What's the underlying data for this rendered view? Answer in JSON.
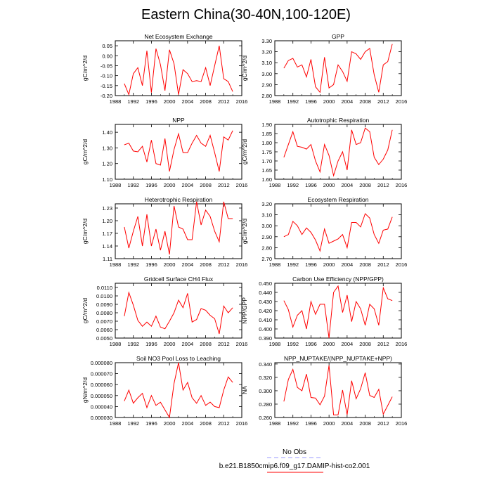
{
  "title": "Eastern China(30-40N,100-120E)",
  "legend": {
    "entries": [
      {
        "label": "No Obs",
        "color": "#9999ff",
        "dash": true
      },
      {
        "label": "b.e21.B1850cmip6.f09_g17.DAMIP-hist-co2.001",
        "color": "#ff0000",
        "dash": false
      }
    ]
  },
  "line_color": "#ff0000",
  "chart_data": [
    {
      "type": "line",
      "title": "Net Ecosystem Exchange",
      "ylabel": "gC/m^2/d",
      "xlim": [
        1988,
        2016
      ],
      "ylim": [
        -0.2,
        0.075
      ],
      "xticks": [
        1988,
        1992,
        1996,
        2000,
        2004,
        2008,
        2012,
        2016
      ],
      "yticks": [
        -0.2,
        -0.15,
        -0.1,
        -0.05,
        0.0,
        0.05
      ],
      "ytick_labels": [
        "-0.20",
        "-0.15",
        "-0.10",
        "-0.05",
        "0.00",
        "0.05"
      ],
      "x": [
        1990,
        1991,
        1992,
        1993,
        1994,
        1995,
        1996,
        1997,
        1998,
        1999,
        2000,
        2001,
        2002,
        2003,
        2004,
        2005,
        2006,
        2007,
        2008,
        2009,
        2010,
        2011,
        2012,
        2013,
        2014
      ],
      "y": [
        -0.14,
        -0.195,
        -0.09,
        -0.06,
        -0.15,
        0.025,
        -0.185,
        0.035,
        -0.045,
        -0.175,
        0.03,
        -0.04,
        -0.195,
        -0.07,
        -0.09,
        -0.13,
        -0.125,
        -0.13,
        -0.06,
        -0.15,
        -0.05,
        0.05,
        -0.115,
        -0.13,
        -0.18
      ]
    },
    {
      "type": "line",
      "title": "GPP",
      "ylabel": "gC/m^2/d",
      "xlim": [
        1988,
        2016
      ],
      "ylim": [
        2.8,
        3.3
      ],
      "xticks": [
        1988,
        1992,
        1996,
        2000,
        2004,
        2008,
        2012,
        2016
      ],
      "yticks": [
        2.8,
        2.9,
        3.0,
        3.1,
        3.2,
        3.3
      ],
      "ytick_labels": [
        "2.80",
        "2.90",
        "3.00",
        "3.10",
        "3.20",
        "3.30"
      ],
      "x": [
        1990,
        1991,
        1992,
        1993,
        1994,
        1995,
        1996,
        1997,
        1998,
        1999,
        2000,
        2001,
        2002,
        2003,
        2004,
        2005,
        2006,
        2007,
        2008,
        2009,
        2010,
        2011,
        2012,
        2013,
        2014
      ],
      "y": [
        3.05,
        3.12,
        3.14,
        3.06,
        3.08,
        2.97,
        3.13,
        2.88,
        2.83,
        3.15,
        2.87,
        2.9,
        3.08,
        3.02,
        2.93,
        3.2,
        3.18,
        3.13,
        3.2,
        3.23,
        2.99,
        2.83,
        3.08,
        3.11,
        3.27
      ]
    },
    {
      "type": "line",
      "title": "NPP",
      "ylabel": "gC/m^2/d",
      "xlim": [
        1988,
        2016
      ],
      "ylim": [
        1.1,
        1.45
      ],
      "xticks": [
        1988,
        1992,
        1996,
        2000,
        2004,
        2008,
        2012,
        2016
      ],
      "yticks": [
        1.1,
        1.2,
        1.3,
        1.4
      ],
      "ytick_labels": [
        "1.10",
        "1.20",
        "1.30",
        "1.40"
      ],
      "x": [
        1990,
        1991,
        1992,
        1993,
        1994,
        1995,
        1996,
        1997,
        1998,
        1999,
        2000,
        2001,
        2002,
        2003,
        2004,
        2005,
        2006,
        2007,
        2008,
        2009,
        2010,
        2011,
        2012,
        2013,
        2014
      ],
      "y": [
        1.32,
        1.33,
        1.28,
        1.275,
        1.31,
        1.21,
        1.35,
        1.2,
        1.19,
        1.36,
        1.15,
        1.29,
        1.39,
        1.27,
        1.27,
        1.33,
        1.38,
        1.33,
        1.31,
        1.38,
        1.27,
        1.15,
        1.37,
        1.35,
        1.41
      ]
    },
    {
      "type": "line",
      "title": "Autotrophic Respiration",
      "ylabel": "gC/m^2/d",
      "xlim": [
        1988,
        2016
      ],
      "ylim": [
        1.6,
        1.9
      ],
      "xticks": [
        1988,
        1992,
        1996,
        2000,
        2004,
        2008,
        2012,
        2016
      ],
      "yticks": [
        1.6,
        1.65,
        1.7,
        1.75,
        1.8,
        1.85,
        1.9
      ],
      "ytick_labels": [
        "1.60",
        "1.65",
        "1.70",
        "1.75",
        "1.80",
        "1.85",
        "1.90"
      ],
      "x": [
        1990,
        1991,
        1992,
        1993,
        1994,
        1995,
        1996,
        1997,
        1998,
        1999,
        2000,
        2001,
        2002,
        2003,
        2004,
        2005,
        2006,
        2007,
        2008,
        2009,
        2010,
        2011,
        2012,
        2013,
        2014
      ],
      "y": [
        1.72,
        1.79,
        1.86,
        1.78,
        1.775,
        1.765,
        1.79,
        1.7,
        1.64,
        1.79,
        1.73,
        1.62,
        1.7,
        1.75,
        1.65,
        1.87,
        1.79,
        1.8,
        1.88,
        1.86,
        1.72,
        1.68,
        1.71,
        1.76,
        1.87
      ]
    },
    {
      "type": "line",
      "title": "Heterotrophic Respiration",
      "ylabel": "gC/m^2/d",
      "xlim": [
        1988,
        2016
      ],
      "ylim": [
        1.11,
        1.24
      ],
      "xticks": [
        1988,
        1992,
        1996,
        2000,
        2004,
        2008,
        2012,
        2016
      ],
      "yticks": [
        1.11,
        1.14,
        1.17,
        1.2,
        1.23
      ],
      "ytick_labels": [
        "1.11",
        "1.14",
        "1.17",
        "1.20",
        "1.23"
      ],
      "x": [
        1990,
        1991,
        1992,
        1993,
        1994,
        1995,
        1996,
        1997,
        1998,
        1999,
        2000,
        2001,
        2002,
        2003,
        2004,
        2005,
        2006,
        2007,
        2008,
        2009,
        2010,
        2011,
        2012,
        2013,
        2014
      ],
      "y": [
        1.185,
        1.135,
        1.175,
        1.21,
        1.14,
        1.215,
        1.14,
        1.18,
        1.13,
        1.175,
        1.12,
        1.235,
        1.185,
        1.18,
        1.155,
        1.155,
        1.245,
        1.19,
        1.225,
        1.21,
        1.175,
        1.15,
        1.245,
        1.205,
        1.205
      ]
    },
    {
      "type": "line",
      "title": "Ecosystem Respiration",
      "ylabel": "gC/m^2/d",
      "xlim": [
        1988,
        2016
      ],
      "ylim": [
        2.7,
        3.2
      ],
      "xticks": [
        1988,
        1992,
        1996,
        2000,
        2004,
        2008,
        2012,
        2016
      ],
      "yticks": [
        2.7,
        2.8,
        2.9,
        3.0,
        3.1,
        3.2
      ],
      "ytick_labels": [
        "2.70",
        "2.80",
        "2.90",
        "3.00",
        "3.10",
        "3.20"
      ],
      "x": [
        1990,
        1991,
        1992,
        1993,
        1994,
        1995,
        1996,
        1997,
        1998,
        1999,
        2000,
        2001,
        2002,
        2003,
        2004,
        2005,
        2006,
        2007,
        2008,
        2009,
        2010,
        2011,
        2012,
        2013,
        2014
      ],
      "y": [
        2.9,
        2.92,
        3.04,
        3.0,
        2.92,
        2.98,
        2.94,
        2.87,
        2.77,
        2.97,
        2.84,
        2.86,
        2.88,
        2.92,
        2.8,
        3.03,
        3.03,
        2.99,
        3.11,
        3.07,
        2.92,
        2.84,
        2.96,
        2.97,
        3.08
      ]
    },
    {
      "type": "line",
      "title": "Gridcell Surface CH4 Flux",
      "ylabel": "gC/m^2/d",
      "xlim": [
        1988,
        2016
      ],
      "ylim": [
        0.005,
        0.0115
      ],
      "xticks": [
        1988,
        1992,
        1996,
        2000,
        2004,
        2008,
        2012,
        2016
      ],
      "yticks": [
        0.005,
        0.006,
        0.007,
        0.008,
        0.009,
        0.01,
        0.011
      ],
      "ytick_labels": [
        "0.0050",
        "0.0060",
        "0.0070",
        "0.0080",
        "0.0090",
        "0.0100",
        "0.0110"
      ],
      "x": [
        1990,
        1991,
        1992,
        1993,
        1994,
        1995,
        1996,
        1997,
        1998,
        1999,
        2000,
        2001,
        2002,
        2003,
        2004,
        2005,
        2006,
        2007,
        2008,
        2009,
        2010,
        2011,
        2012,
        2013,
        2014
      ],
      "y": [
        0.0076,
        0.0104,
        0.0089,
        0.0071,
        0.0064,
        0.0069,
        0.0064,
        0.0076,
        0.0063,
        0.0061,
        0.007,
        0.008,
        0.0095,
        0.0086,
        0.0103,
        0.0069,
        0.0072,
        0.0085,
        0.0083,
        0.0077,
        0.0073,
        0.0055,
        0.0088,
        0.008,
        0.0086
      ]
    },
    {
      "type": "line",
      "title": "Carbon Use Efficiency (NPP/GPP)",
      "ylabel": "NPP/GPP",
      "xlim": [
        1988,
        2016
      ],
      "ylim": [
        0.39,
        0.45
      ],
      "xticks": [
        1988,
        1992,
        1996,
        2000,
        2004,
        2008,
        2012,
        2016
      ],
      "yticks": [
        0.39,
        0.4,
        0.41,
        0.42,
        0.43,
        0.44,
        0.45
      ],
      "ytick_labels": [
        "0.390",
        "0.400",
        "0.410",
        "0.420",
        "0.430",
        "0.440",
        "0.450"
      ],
      "x": [
        1990,
        1991,
        1992,
        1993,
        1994,
        1995,
        1996,
        1997,
        1998,
        1999,
        2000,
        2001,
        2002,
        2003,
        2004,
        2005,
        2006,
        2007,
        2008,
        2009,
        2010,
        2011,
        2012,
        2013,
        2014
      ],
      "y": [
        0.431,
        0.421,
        0.402,
        0.415,
        0.42,
        0.4,
        0.43,
        0.416,
        0.427,
        0.427,
        0.39,
        0.44,
        0.447,
        0.418,
        0.437,
        0.408,
        0.43,
        0.422,
        0.404,
        0.427,
        0.422,
        0.404,
        0.445,
        0.433,
        0.431
      ]
    },
    {
      "type": "line",
      "title": "Soil NO3 Pool Loss to Leaching",
      "ylabel": "gN/m^2/d",
      "xlim": [
        1988,
        2016
      ],
      "ylim": [
        3e-05,
        8e-05
      ],
      "xticks": [
        1988,
        1992,
        1996,
        2000,
        2004,
        2008,
        2012,
        2016
      ],
      "yticks": [
        3e-05,
        4e-05,
        5e-05,
        6e-05,
        7e-05,
        8e-05
      ],
      "ytick_labels": [
        "0.000030",
        "0.000040",
        "0.000050",
        "0.000060",
        "0.000070",
        "0.000080"
      ],
      "x": [
        1990,
        1991,
        1992,
        1993,
        1994,
        1995,
        1996,
        1997,
        1998,
        1999,
        2000,
        2001,
        2002,
        2003,
        2004,
        2005,
        2006,
        2007,
        2008,
        2009,
        2010,
        2011,
        2012,
        2013,
        2014
      ],
      "y": [
        4.5e-05,
        5.5e-05,
        4.3e-05,
        4.8e-05,
        5.2e-05,
        3.9e-05,
        5e-05,
        4.1e-05,
        4.4e-05,
        3.7e-05,
        3e-05,
        6.1e-05,
        8e-05,
        5.5e-05,
        6.2e-05,
        4.8e-05,
        4.3e-05,
        5e-05,
        4.1e-05,
        4.4e-05,
        4e-05,
        3.9e-05,
        5.5e-05,
        6.7e-05,
        6.2e-05
      ]
    },
    {
      "type": "line",
      "title": "NPP_NUPTAKE/(NPP_NUPTAKE+NPP)",
      "ylabel": "NA",
      "xlim": [
        1988,
        2016
      ],
      "ylim": [
        0.26,
        0.342
      ],
      "xticks": [
        1988,
        1992,
        1996,
        2000,
        2004,
        2008,
        2012,
        2016
      ],
      "yticks": [
        0.26,
        0.28,
        0.3,
        0.32,
        0.34
      ],
      "ytick_labels": [
        "0.260",
        "0.280",
        "0.300",
        "0.320",
        "0.340"
      ],
      "x": [
        1990,
        1991,
        1992,
        1993,
        1994,
        1995,
        1996,
        1997,
        1998,
        1999,
        2000,
        2001,
        2002,
        2003,
        2004,
        2005,
        2006,
        2007,
        2008,
        2009,
        2010,
        2011,
        2012,
        2013,
        2014
      ],
      "y": [
        0.284,
        0.317,
        0.332,
        0.305,
        0.3,
        0.325,
        0.29,
        0.289,
        0.279,
        0.292,
        0.338,
        0.264,
        0.264,
        0.301,
        0.264,
        0.315,
        0.288,
        0.303,
        0.327,
        0.293,
        0.29,
        0.302,
        0.265,
        0.278,
        0.291
      ]
    }
  ]
}
